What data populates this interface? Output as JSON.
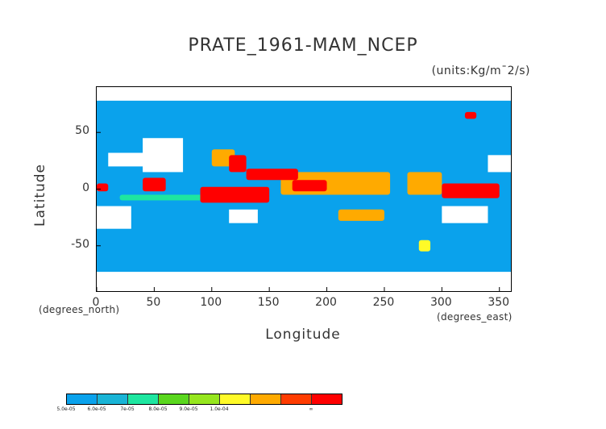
{
  "chart_data": {
    "type": "heatmap",
    "title": "PRATE_1961-MAM_NCEP",
    "units": "(units:Kg/m¯2/s)",
    "xlabel": "Longitude",
    "ylabel": "Latitude",
    "xunit_label": "(degrees_east)",
    "yunit_label": "(degrees_north)",
    "xlim": [
      0,
      360
    ],
    "ylim": [
      -90,
      90
    ],
    "xticks": [
      0,
      50,
      100,
      150,
      200,
      250,
      300,
      350
    ],
    "yticks": [
      50,
      0,
      -50
    ],
    "grid": false,
    "colorbar": {
      "labels": [
        "5.0e-05",
        "6.0e-05",
        "7e-05",
        "8.0e-05",
        "9.0e-05",
        "1.0e-04",
        "∞"
      ],
      "colors": [
        "#0aa2ec",
        "#19b4d6",
        "#1ee6a0",
        "#5ad71e",
        "#96e61e",
        "#fffa28",
        "#ffaa00",
        "#ff3c00",
        "#ff0000"
      ]
    },
    "level_colors": {
      "below_5e-05": "#0aa2ec",
      "low_band": "#1ee6a0",
      "mid_band": "#5ad71e",
      "high_band": "#fffa28",
      "higher_band": "#ffaa00",
      "peak": "#ff0000",
      "missing": "#ffffff"
    },
    "regions": [
      {
        "lon": [
          130,
          175
        ],
        "lat": [
          8,
          18
        ],
        "level": "peak"
      },
      {
        "lon": [
          160,
          255
        ],
        "lat": [
          -5,
          15
        ],
        "level": "higher_band"
      },
      {
        "lon": [
          170,
          200
        ],
        "lat": [
          -2,
          8
        ],
        "level": "peak"
      },
      {
        "lon": [
          300,
          350
        ],
        "lat": [
          -8,
          5
        ],
        "level": "peak"
      },
      {
        "lon": [
          270,
          300
        ],
        "lat": [
          -5,
          15
        ],
        "level": "higher_band"
      },
      {
        "lon": [
          90,
          150
        ],
        "lat": [
          -12,
          2
        ],
        "level": "peak"
      },
      {
        "lon": [
          115,
          130
        ],
        "lat": [
          15,
          30
        ],
        "level": "peak"
      },
      {
        "lon": [
          100,
          120
        ],
        "lat": [
          20,
          35
        ],
        "level": "higher_band"
      },
      {
        "lon": [
          40,
          60
        ],
        "lat": [
          -2,
          10
        ],
        "level": "peak"
      },
      {
        "lon": [
          0,
          10
        ],
        "lat": [
          -2,
          5
        ],
        "level": "peak"
      },
      {
        "lon": [
          210,
          250
        ],
        "lat": [
          -28,
          -18
        ],
        "level": "higher_band"
      },
      {
        "lon": [
          20,
          150
        ],
        "lat": [
          -10,
          -5
        ],
        "level": "low_band"
      },
      {
        "lon": [
          280,
          290
        ],
        "lat": [
          -55,
          -45
        ],
        "level": "high_band"
      },
      {
        "lon": [
          320,
          330
        ],
        "lat": [
          62,
          68
        ],
        "level": "peak"
      }
    ],
    "missing_regions": [
      {
        "lon": [
          10,
          45
        ],
        "lat": [
          20,
          32
        ]
      },
      {
        "lon": [
          40,
          75
        ],
        "lat": [
          15,
          45
        ]
      },
      {
        "lon": [
          115,
          140
        ],
        "lat": [
          -30,
          -18
        ]
      },
      {
        "lon": [
          0,
          30
        ],
        "lat": [
          -35,
          -15
        ]
      },
      {
        "lon": [
          0,
          360
        ],
        "lat": [
          -90,
          -73
        ]
      },
      {
        "lon": [
          0,
          360
        ],
        "lat": [
          78,
          90
        ]
      },
      {
        "lon": [
          340,
          360
        ],
        "lat": [
          15,
          30
        ]
      },
      {
        "lon": [
          300,
          340
        ],
        "lat": [
          -30,
          -15
        ]
      }
    ]
  }
}
